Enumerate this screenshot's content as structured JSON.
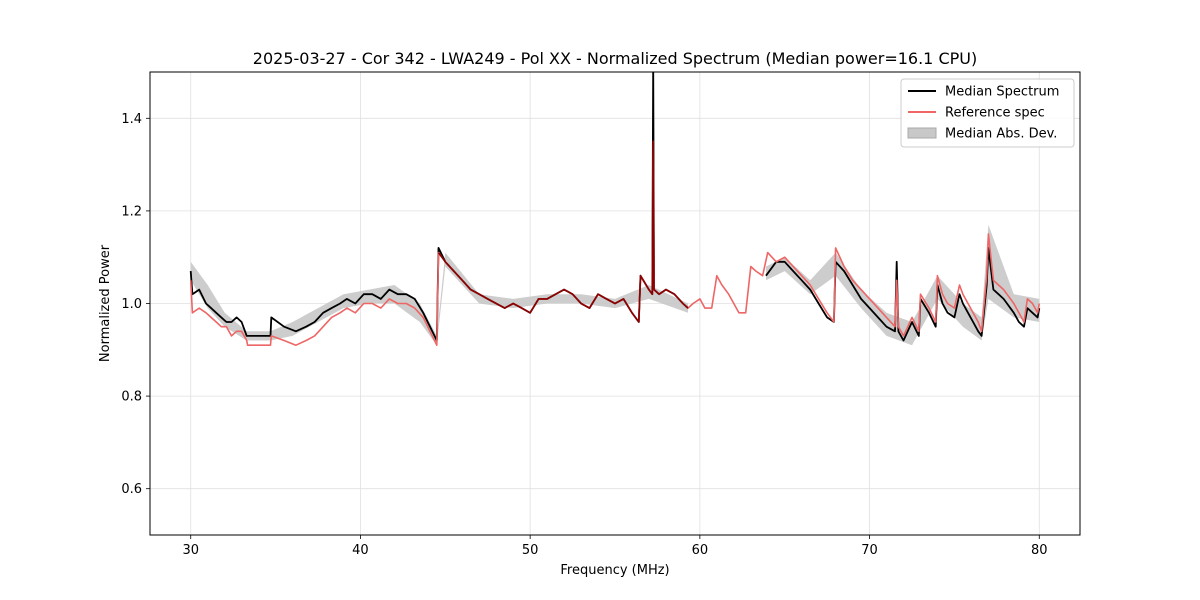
{
  "chart_data": {
    "type": "line",
    "title": "2025-03-27 - Cor 342 - LWA249 - Pol XX - Normalized Spectrum (Median power=16.1 CPU)",
    "xlabel": "Frequency (MHz)",
    "ylabel": "Normalized Power",
    "xlim": [
      27.6,
      82.4
    ],
    "ylim": [
      0.5,
      1.5
    ],
    "xticks": [
      30,
      40,
      50,
      60,
      70,
      80
    ],
    "yticks": [
      0.6,
      0.8,
      1.0,
      1.2,
      1.4
    ],
    "xtick_labels": [
      "30",
      "40",
      "50",
      "60",
      "70",
      "80"
    ],
    "ytick_labels": [
      "0.6",
      "0.8",
      "1.0",
      "1.2",
      "1.4"
    ],
    "grid": true,
    "legend_position": "top-right",
    "colors": {
      "median": "#000000",
      "reference": "#ee6666",
      "overlap": "#8b0000",
      "mad_fill": "#c8c8c8"
    },
    "legend": [
      {
        "label": "Median Spectrum",
        "kind": "line",
        "color": "#000000"
      },
      {
        "label": "Reference spec",
        "kind": "line",
        "color": "#ee6666"
      },
      {
        "label": "Median Abs. Dev.",
        "kind": "patch",
        "color": "#c8c8c8"
      }
    ],
    "series": [
      {
        "name": "Reference spec",
        "color": "#ee6666",
        "x": [
          30.0,
          30.1,
          30.5,
          30.9,
          31.2,
          31.5,
          31.8,
          32.1,
          32.4,
          32.7,
          33.0,
          33.3,
          33.35,
          34.0,
          34.7,
          34.75,
          35.5,
          36.2,
          36.8,
          37.3,
          37.8,
          38.3,
          38.8,
          39.2,
          39.7,
          40.2,
          40.7,
          41.2,
          41.7,
          42.2,
          42.7,
          43.2,
          43.7,
          44.1,
          44.5,
          44.6,
          45.0,
          45.5,
          46.0,
          46.5,
          47.0,
          47.5,
          48.0,
          48.5,
          49.0,
          49.5,
          50.0,
          50.5,
          51.0,
          51.5,
          52.0,
          52.5,
          53.0,
          53.5,
          54.0,
          54.5,
          55.0,
          55.5,
          56.0,
          56.4,
          56.5,
          57.0,
          57.2,
          57.25,
          57.3,
          57.6,
          58.0,
          58.5,
          59.0,
          59.3,
          59.6,
          60.0,
          60.3,
          60.7,
          61.0,
          61.3,
          61.7,
          62.0,
          62.3,
          62.7,
          63.0,
          63.3,
          63.7,
          64.0,
          64.5,
          65.0,
          65.5,
          66.0,
          66.5,
          67.0,
          67.5,
          67.9,
          68.0,
          68.5,
          69.0,
          69.5,
          70.0,
          70.5,
          71.0,
          71.5,
          71.6,
          71.7,
          72.0,
          72.5,
          72.9,
          73.0,
          73.5,
          73.9,
          74.0,
          74.3,
          74.6,
          75.0,
          75.3,
          75.5,
          75.8,
          76.1,
          76.4,
          76.6,
          76.9,
          77.0,
          77.3,
          77.6,
          77.9,
          78.1,
          78.5,
          78.8,
          79.1,
          79.3,
          79.6,
          79.9,
          80.0
        ],
        "values": [
          1.05,
          0.98,
          0.99,
          0.98,
          0.97,
          0.96,
          0.95,
          0.95,
          0.93,
          0.94,
          0.94,
          0.92,
          0.91,
          0.91,
          0.91,
          0.93,
          0.92,
          0.91,
          0.92,
          0.93,
          0.95,
          0.97,
          0.98,
          0.99,
          0.98,
          1.0,
          1.0,
          0.99,
          1.01,
          1.0,
          1.0,
          0.99,
          0.97,
          0.94,
          0.91,
          1.11,
          1.09,
          1.07,
          1.05,
          1.03,
          1.02,
          1.01,
          1.0,
          0.99,
          1.0,
          0.99,
          0.98,
          1.01,
          1.01,
          1.02,
          1.03,
          1.02,
          1.0,
          0.99,
          1.02,
          1.01,
          1.0,
          1.01,
          0.98,
          0.96,
          1.06,
          1.03,
          1.02,
          1.35,
          1.03,
          1.02,
          1.03,
          1.02,
          1.0,
          0.99,
          1.0,
          1.01,
          0.99,
          0.99,
          1.06,
          1.04,
          1.02,
          1.0,
          0.98,
          0.98,
          1.08,
          1.07,
          1.06,
          1.11,
          1.09,
          1.1,
          1.08,
          1.06,
          1.04,
          1.01,
          0.98,
          0.96,
          1.12,
          1.08,
          1.05,
          1.03,
          1.01,
          0.99,
          0.97,
          0.95,
          1.05,
          0.95,
          0.93,
          0.97,
          0.94,
          1.02,
          0.99,
          0.96,
          1.06,
          1.02,
          1.0,
          0.99,
          1.04,
          1.02,
          1.0,
          0.98,
          0.96,
          0.94,
          1.06,
          1.15,
          1.05,
          1.04,
          1.03,
          1.02,
          1.0,
          0.98,
          0.96,
          1.01,
          1.0,
          0.98,
          1.0
        ]
      },
      {
        "name": "Median Spectrum",
        "color": "#000000",
        "x": [
          30.0,
          30.1,
          30.5,
          30.9,
          31.2,
          31.5,
          31.8,
          32.1,
          32.4,
          32.7,
          33.0,
          33.3,
          33.35,
          34.0,
          34.7,
          34.75,
          35.5,
          36.2,
          36.8,
          37.3,
          37.8,
          38.3,
          38.8,
          39.2,
          39.7,
          40.2,
          40.7,
          41.2,
          41.7,
          42.2,
          42.7,
          43.2,
          43.7,
          44.1,
          44.5,
          44.6,
          45.0,
          45.5,
          46.0,
          46.5,
          47.0,
          47.5,
          48.0,
          48.5,
          49.0,
          49.5,
          50.0,
          50.5,
          51.0,
          51.5,
          52.0,
          52.5,
          53.0,
          53.5,
          54.0,
          54.5,
          55.0,
          55.5,
          56.0,
          56.4,
          56.5,
          57.0,
          57.2,
          57.25,
          57.3,
          57.6,
          58.0,
          58.5,
          59.0,
          59.3,
          null,
          63.9,
          64.5,
          65.0,
          65.5,
          66.0,
          66.5,
          67.0,
          67.5,
          67.9,
          68.0,
          68.5,
          69.0,
          69.5,
          70.0,
          70.5,
          71.0,
          71.5,
          71.6,
          71.7,
          72.0,
          72.5,
          72.9,
          73.0,
          73.5,
          73.9,
          74.0,
          74.3,
          74.6,
          75.0,
          75.3,
          75.5,
          75.8,
          76.1,
          76.4,
          76.6,
          76.9,
          77.0,
          77.3,
          77.6,
          77.9,
          78.1,
          78.5,
          78.8,
          79.1,
          79.3,
          79.6,
          79.9,
          80.0
        ],
        "values": [
          1.07,
          1.02,
          1.03,
          1.0,
          0.99,
          0.98,
          0.97,
          0.96,
          0.96,
          0.97,
          0.96,
          0.93,
          0.93,
          0.93,
          0.93,
          0.97,
          0.95,
          0.94,
          0.95,
          0.96,
          0.98,
          0.99,
          1.0,
          1.01,
          1.0,
          1.02,
          1.02,
          1.01,
          1.03,
          1.02,
          1.02,
          1.01,
          0.98,
          0.95,
          0.92,
          1.12,
          1.09,
          1.07,
          1.05,
          1.03,
          1.02,
          1.01,
          1.0,
          0.99,
          1.0,
          0.99,
          0.98,
          1.01,
          1.01,
          1.02,
          1.03,
          1.02,
          1.0,
          0.99,
          1.02,
          1.01,
          1.0,
          1.01,
          0.98,
          0.96,
          1.06,
          1.03,
          1.02,
          1.52,
          1.03,
          1.02,
          1.03,
          1.02,
          1.0,
          0.99,
          null,
          1.06,
          1.09,
          1.09,
          1.07,
          1.05,
          1.03,
          1.0,
          0.97,
          0.96,
          1.09,
          1.07,
          1.04,
          1.01,
          0.99,
          0.97,
          0.95,
          0.94,
          1.09,
          0.94,
          0.92,
          0.96,
          0.93,
          1.01,
          0.98,
          0.95,
          1.04,
          1.0,
          0.98,
          0.97,
          1.02,
          1.0,
          0.98,
          0.96,
          0.94,
          0.93,
          1.04,
          1.12,
          1.03,
          1.02,
          1.01,
          1.0,
          0.98,
          0.96,
          0.95,
          0.99,
          0.98,
          0.97,
          0.99
        ]
      }
    ],
    "mad_band": {
      "name": "Median Abs. Dev.",
      "color": "#c8c8c8",
      "x": [
        30.0,
        31.0,
        32.0,
        33.3,
        34.7,
        36.0,
        37.5,
        39.0,
        40.5,
        42.0,
        43.5,
        44.5,
        45.0,
        47.0,
        49.0,
        51.0,
        53.0,
        55.0,
        57.0,
        59.3,
        null,
        63.9,
        65.0,
        66.5,
        68.0,
        69.5,
        71.0,
        72.5,
        74.0,
        75.5,
        76.6,
        77.0,
        78.5,
        80.0
      ],
      "lower": [
        1.05,
        0.99,
        0.95,
        0.92,
        0.92,
        0.93,
        0.96,
        0.99,
        1.0,
        1.0,
        0.96,
        0.91,
        1.08,
        1.0,
        0.99,
        1.0,
        1.0,
        0.99,
        1.01,
        0.98,
        null,
        1.05,
        1.07,
        1.02,
        1.06,
        0.99,
        0.93,
        0.91,
        1.01,
        0.95,
        0.92,
        1.01,
        0.97,
        0.96
      ],
      "upper": [
        1.09,
        1.04,
        0.98,
        0.94,
        0.94,
        0.96,
        0.99,
        1.02,
        1.03,
        1.04,
        1.0,
        0.93,
        1.11,
        1.02,
        1.01,
        1.02,
        1.02,
        1.01,
        1.04,
        1.0,
        null,
        1.08,
        1.1,
        1.05,
        1.11,
        1.03,
        0.98,
        0.96,
        1.06,
        1.0,
        0.97,
        1.17,
        1.02,
        1.01
      ]
    }
  }
}
